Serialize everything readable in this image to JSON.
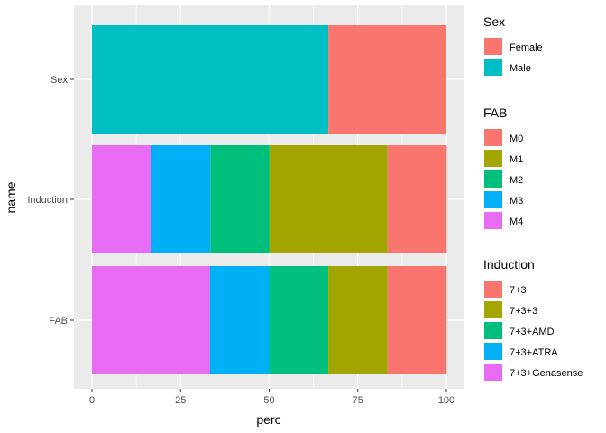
{
  "chart_data": {
    "type": "bar",
    "orientation": "horizontal",
    "stacked": true,
    "xlabel": "perc",
    "ylabel": "name",
    "xlim": [
      0,
      100
    ],
    "x_ticks": [
      "0",
      "25",
      "50",
      "75",
      "100"
    ],
    "categories": [
      "Sex",
      "Induction",
      "FAB"
    ],
    "bars": [
      {
        "category": "Sex",
        "segments": [
          {
            "group": "Male",
            "value": 66.7,
            "color": "#00BFC4"
          },
          {
            "group": "Female",
            "value": 33.3,
            "color": "#F8766D"
          }
        ]
      },
      {
        "category": "Induction",
        "segments": [
          {
            "group": "M4",
            "value": 16.7,
            "color": "#E76BF3"
          },
          {
            "group": "M3",
            "value": 16.7,
            "color": "#00B0F6"
          },
          {
            "group": "M2",
            "value": 16.7,
            "color": "#00BF7D"
          },
          {
            "group": "M1",
            "value": 33.3,
            "color": "#A3A500"
          },
          {
            "group": "M0",
            "value": 16.7,
            "color": "#F8766D"
          }
        ]
      },
      {
        "category": "FAB",
        "segments": [
          {
            "group": "7+3+Genasense",
            "value": 33.3,
            "color": "#E76BF3"
          },
          {
            "group": "7+3+ATRA",
            "value": 16.7,
            "color": "#00B0F6"
          },
          {
            "group": "7+3+AMD",
            "value": 16.7,
            "color": "#00BF7D"
          },
          {
            "group": "7+3+3",
            "value": 16.7,
            "color": "#A3A500"
          },
          {
            "group": "7+3",
            "value": 16.7,
            "color": "#F8766D"
          }
        ]
      }
    ],
    "grid": true,
    "legend_position": "right",
    "legends": [
      {
        "title": "Sex",
        "items": [
          {
            "label": "Female",
            "color": "#F8766D"
          },
          {
            "label": "Male",
            "color": "#00BFC4"
          }
        ]
      },
      {
        "title": "FAB",
        "items": [
          {
            "label": "M0",
            "color": "#F8766D"
          },
          {
            "label": "M1",
            "color": "#A3A500"
          },
          {
            "label": "M2",
            "color": "#00BF7D"
          },
          {
            "label": "M3",
            "color": "#00B0F6"
          },
          {
            "label": "M4",
            "color": "#E76BF3"
          }
        ]
      },
      {
        "title": "Induction",
        "items": [
          {
            "label": "7+3",
            "color": "#F8766D"
          },
          {
            "label": "7+3+3",
            "color": "#A3A500"
          },
          {
            "label": "7+3+AMD",
            "color": "#00BF7D"
          },
          {
            "label": "7+3+ATRA",
            "color": "#00B0F6"
          },
          {
            "label": "7+3+Genasense",
            "color": "#E76BF3"
          }
        ]
      }
    ]
  }
}
